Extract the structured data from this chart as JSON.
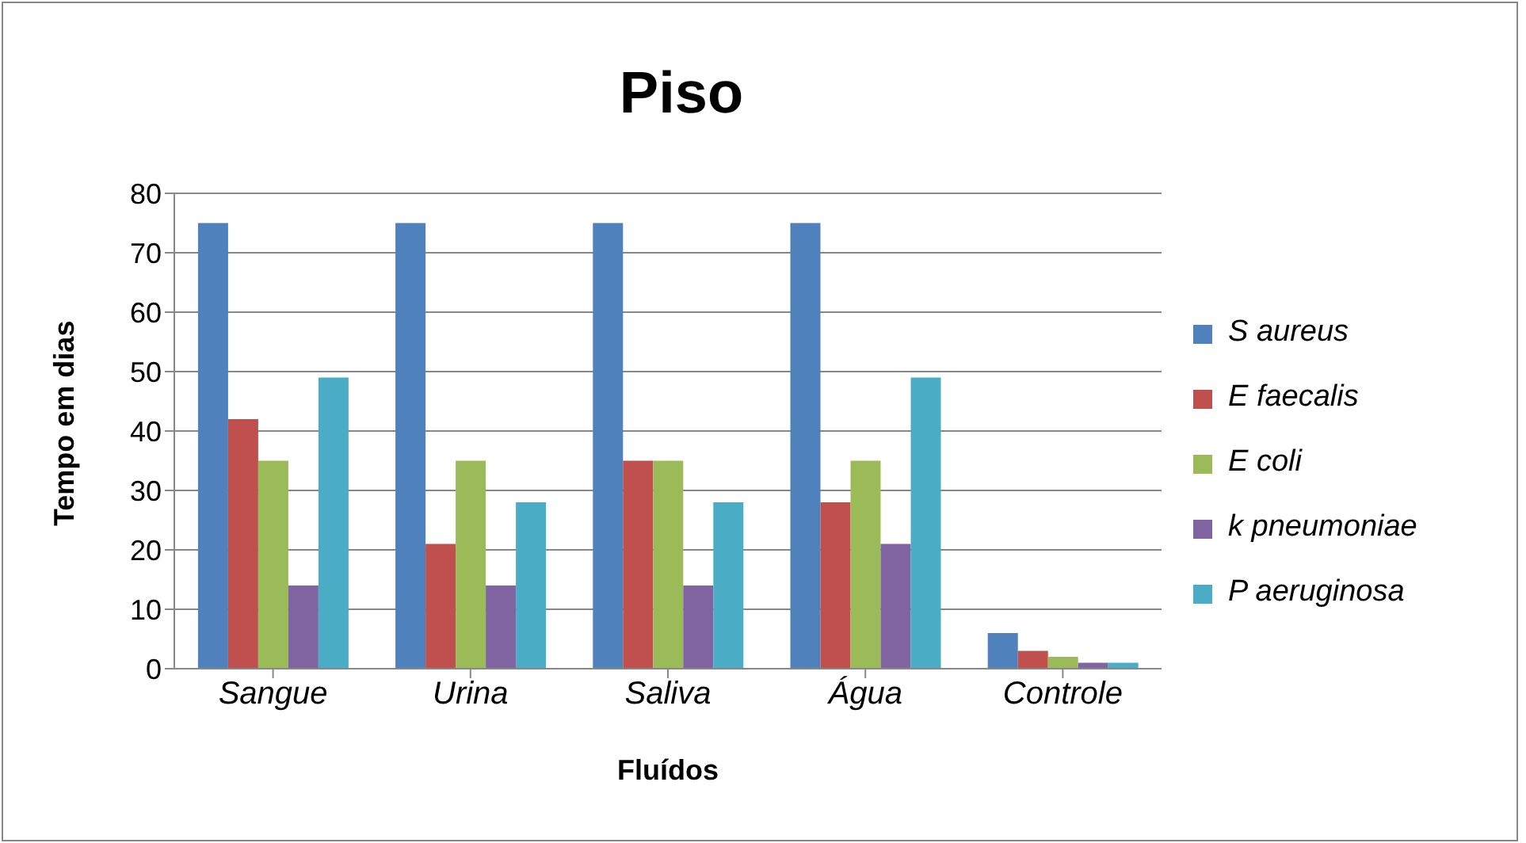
{
  "chart_data": {
    "type": "bar",
    "title": "Piso",
    "xlabel": "Fluídos",
    "ylabel": "Tempo em dias",
    "categories": [
      "Sangue",
      "Urina",
      "Saliva",
      "Água",
      "Controle"
    ],
    "series": [
      {
        "name": "S aureus",
        "color": "#4f81bd",
        "values": [
          75,
          75,
          75,
          75,
          6
        ]
      },
      {
        "name": "E faecalis",
        "color": "#c0504d",
        "values": [
          42,
          21,
          35,
          28,
          3
        ]
      },
      {
        "name": "E coli",
        "color": "#9bbb59",
        "values": [
          35,
          35,
          35,
          35,
          2
        ]
      },
      {
        "name": "k pneumoniae",
        "color": "#8064a2",
        "values": [
          14,
          14,
          14,
          21,
          1
        ]
      },
      {
        "name": "P aeruginosa",
        "color": "#4bacc6",
        "values": [
          49,
          28,
          28,
          49,
          1
        ]
      }
    ],
    "ylim": [
      0,
      80
    ],
    "yticks": [
      0,
      10,
      20,
      30,
      40,
      50,
      60,
      70,
      80
    ],
    "grid": "y",
    "legend": "right"
  }
}
